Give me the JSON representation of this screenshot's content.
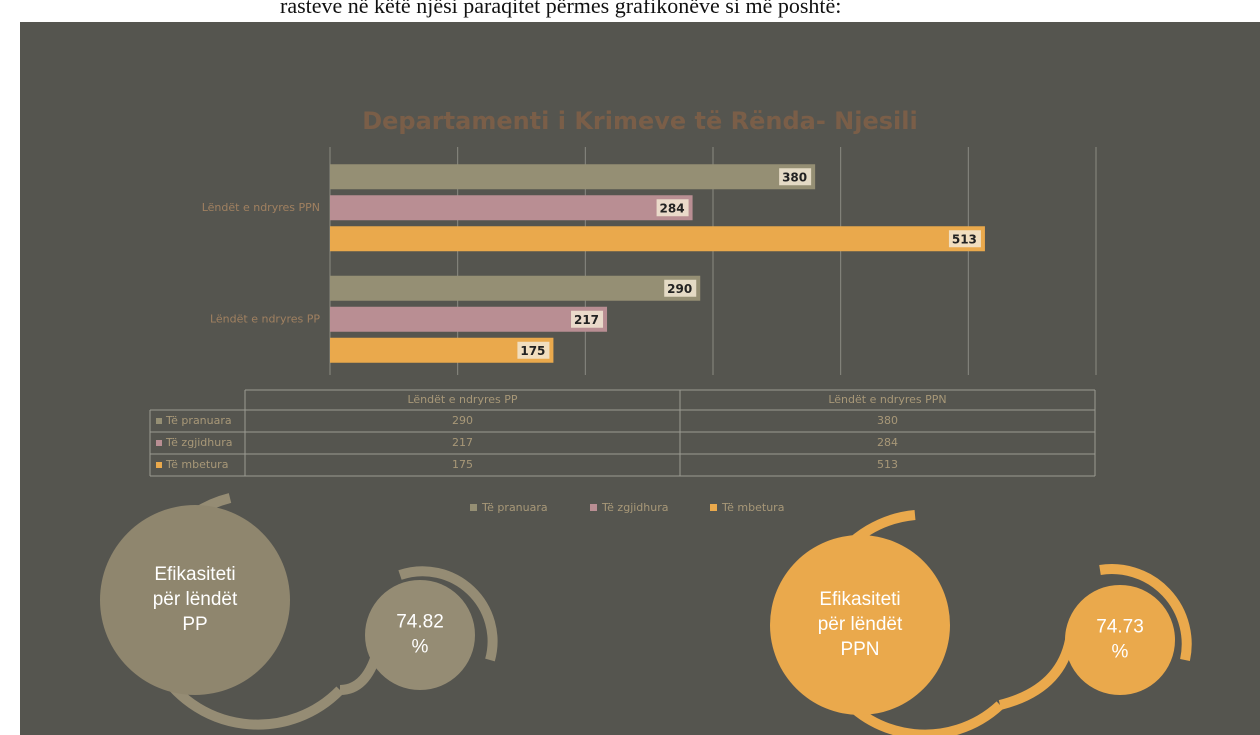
{
  "intro_text": "rasteve në këtë njësi paraqitet përmes grafikonëve si më poshtë:",
  "chart_data": {
    "type": "bar",
    "orientation": "horizontal",
    "title": "Departamenti i Krimeve të Rënda- Njesili",
    "categories": [
      "Lëndët e ndryres PP",
      "Lëndët e ndryres PPN"
    ],
    "series": [
      {
        "name": "Të pranuara",
        "color": "#958f74",
        "values": [
          290,
          380
        ]
      },
      {
        "name": "Të zgjidhura",
        "color": "#b98e93",
        "values": [
          217,
          284
        ]
      },
      {
        "name": "Të mbetura",
        "color": "#eaa94c",
        "values": [
          175,
          513
        ]
      }
    ],
    "xlim": [
      0,
      600
    ],
    "xticks": [
      0,
      100,
      200,
      300,
      400,
      500,
      600
    ],
    "grid": true,
    "legend": "bottom",
    "data_table": true
  },
  "efficiency": [
    {
      "label": "Efikasiteti për lëndët PP",
      "value_label": "74.82 %"
    },
    {
      "label": "Efikasiteti për lëndët PPN",
      "value_label": "74.73 %"
    }
  ]
}
